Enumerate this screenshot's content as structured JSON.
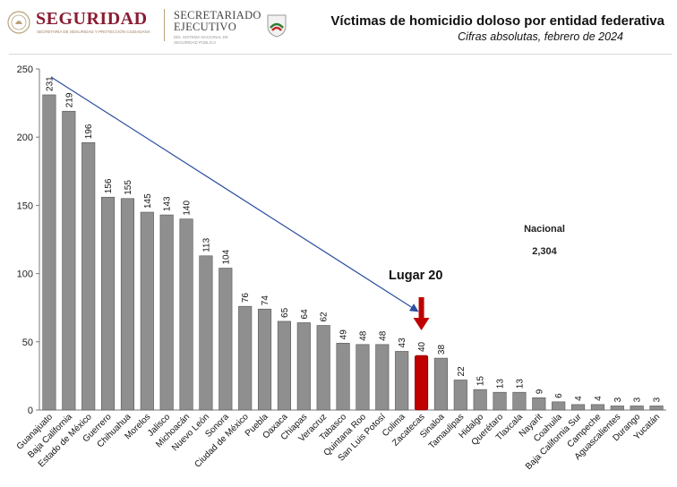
{
  "header": {
    "brand_main": "SEGURIDAD",
    "brand_sub": "SECRETARÍA DE SEGURIDAD Y PROTECCIÓN CIUDADANA",
    "sec_title_line1": "SECRETARIADO",
    "sec_title_line2": "EJECUTIVO",
    "sec_sub": "DEL SISTEMA NACIONAL DE SEGURIDAD PÚBLICA",
    "seal_icon": "mexico-coat-of-arms-icon",
    "emblem_icon": "sesnsp-emblem-icon"
  },
  "colors": {
    "brand": "#8a1c32",
    "bar": "#8f8f8f",
    "highlight": "#c00000",
    "trend_line": "#2d4fa3"
  },
  "annotations": {
    "nacional_label": "Nacional",
    "nacional_value": "2,304",
    "lugar": "Lugar 20",
    "highlight_category": "Zacatecas"
  },
  "chart_data": {
    "type": "bar",
    "title": "Víctimas de homicidio doloso por entidad federativa",
    "subtitle": "Cifras absolutas, febrero de 2024",
    "xlabel": "",
    "ylabel": "",
    "ylim": [
      0,
      250
    ],
    "yticks": [
      0,
      50,
      100,
      150,
      200,
      250
    ],
    "grid": false,
    "legend": "none",
    "data_labels": true,
    "categories": [
      "Guanajuato",
      "Baja California",
      "Estado de México",
      "Guerrero",
      "Chihuahua",
      "Morelos",
      "Jalisco",
      "Michoacán",
      "Nuevo León",
      "Sonora",
      "Ciudad de México",
      "Puebla",
      "Oaxaca",
      "Chiapas",
      "Veracruz",
      "Tabasco",
      "Quintana Roo",
      "San Luis Potosí",
      "Colima",
      "Zacatecas",
      "Sinaloa",
      "Tamaulipas",
      "Hidalgo",
      "Querétaro",
      "Tlaxcala",
      "Nayarit",
      "Coahuila",
      "Baja California Sur",
      "Campeche",
      "Aguascalientes",
      "Durango",
      "Yucatán"
    ],
    "values": [
      231,
      219,
      196,
      156,
      155,
      145,
      143,
      140,
      113,
      104,
      76,
      74,
      65,
      64,
      62,
      49,
      48,
      48,
      43,
      40,
      38,
      22,
      15,
      13,
      13,
      9,
      6,
      4,
      4,
      3,
      3,
      3
    ]
  }
}
